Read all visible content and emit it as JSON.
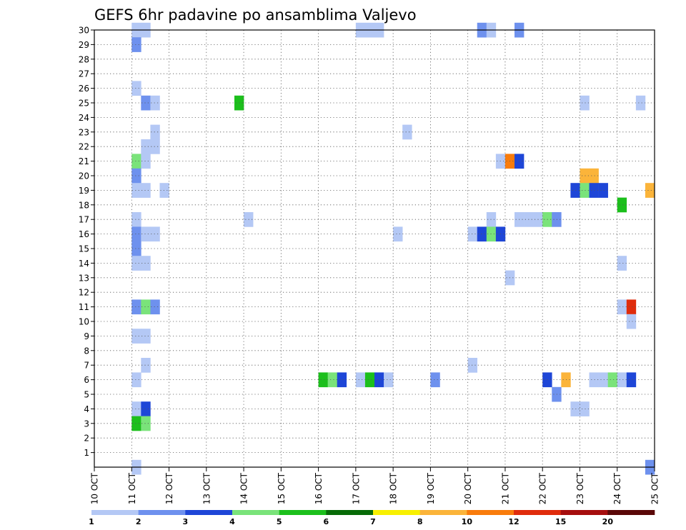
{
  "chart_data": {
    "type": "heatmap",
    "title": "GEFS 6hr padavine po ansamblima Valjevo",
    "xlabel": "",
    "ylabel": "",
    "x_range": [
      0,
      60
    ],
    "y_range": [
      0,
      30
    ],
    "x_ticks": [
      {
        "pos": 0,
        "label": "10 OCT"
      },
      {
        "pos": 4,
        "label": "11 OCT"
      },
      {
        "pos": 8,
        "label": "12 OCT"
      },
      {
        "pos": 12,
        "label": "13 OCT"
      },
      {
        "pos": 16,
        "label": "14 OCT"
      },
      {
        "pos": 20,
        "label": "15 OCT"
      },
      {
        "pos": 24,
        "label": "16 OCT"
      },
      {
        "pos": 28,
        "label": "17 OCT"
      },
      {
        "pos": 32,
        "label": "18 OCT"
      },
      {
        "pos": 36,
        "label": "19 OCT"
      },
      {
        "pos": 40,
        "label": "20 OCT"
      },
      {
        "pos": 44,
        "label": "21 OCT"
      },
      {
        "pos": 48,
        "label": "22 OCT"
      },
      {
        "pos": 52,
        "label": "23 OCT"
      },
      {
        "pos": 56,
        "label": "24 OCT"
      },
      {
        "pos": 60,
        "label": "25 OCT"
      }
    ],
    "y_ticks": [
      "1",
      "2",
      "3",
      "4",
      "5",
      "6",
      "7",
      "8",
      "9",
      "10",
      "11",
      "12",
      "13",
      "14",
      "15",
      "16",
      "17",
      "18",
      "19",
      "20",
      "21",
      "22",
      "23",
      "24",
      "25",
      "26",
      "27",
      "28",
      "29",
      "30"
    ],
    "grid": true,
    "colorbar": {
      "labels": [
        "1",
        "2",
        "3",
        "4",
        "5",
        "6",
        "7",
        "8",
        "10",
        "12",
        "15",
        "20"
      ],
      "colors": [
        "#b4c8f5",
        "#6e91ee",
        "#1e46d7",
        "#7ae37a",
        "#1cbf1c",
        "#076b07",
        "#f8f000",
        "#fbb43a",
        "#f97c0c",
        "#e02c0c",
        "#a60e0e",
        "#5a0808"
      ]
    },
    "cells": [
      {
        "t": 4,
        "m": 30,
        "c": 0
      },
      {
        "t": 5,
        "m": 30,
        "c": 0
      },
      {
        "t": 28,
        "m": 30,
        "c": 0
      },
      {
        "t": 29,
        "m": 30,
        "c": 0
      },
      {
        "t": 30,
        "m": 30,
        "c": 0
      },
      {
        "t": 41,
        "m": 30,
        "c": 1
      },
      {
        "t": 42,
        "m": 30,
        "c": 0
      },
      {
        "t": 45,
        "m": 30,
        "c": 1
      },
      {
        "t": 4,
        "m": 29,
        "c": 1
      },
      {
        "t": 4,
        "m": 26,
        "c": 0
      },
      {
        "t": 5,
        "m": 25,
        "c": 1
      },
      {
        "t": 6,
        "m": 25,
        "c": 0
      },
      {
        "t": 15,
        "m": 25,
        "c": 4
      },
      {
        "t": 52,
        "m": 25,
        "c": 0
      },
      {
        "t": 58,
        "m": 25,
        "c": 0
      },
      {
        "t": 6,
        "m": 23,
        "c": 0
      },
      {
        "t": 33,
        "m": 23,
        "c": 0
      },
      {
        "t": 5,
        "m": 22,
        "c": 0
      },
      {
        "t": 6,
        "m": 22,
        "c": 0
      },
      {
        "t": 4,
        "m": 21,
        "c": 3
      },
      {
        "t": 5,
        "m": 21,
        "c": 0
      },
      {
        "t": 43,
        "m": 21,
        "c": 0
      },
      {
        "t": 44,
        "m": 21,
        "c": 8
      },
      {
        "t": 45,
        "m": 21,
        "c": 2
      },
      {
        "t": 4,
        "m": 20,
        "c": 1
      },
      {
        "t": 52,
        "m": 20,
        "c": 7
      },
      {
        "t": 53,
        "m": 20,
        "c": 7
      },
      {
        "t": 4,
        "m": 19,
        "c": 0
      },
      {
        "t": 5,
        "m": 19,
        "c": 0
      },
      {
        "t": 7,
        "m": 19,
        "c": 0
      },
      {
        "t": 51,
        "m": 19,
        "c": 2
      },
      {
        "t": 52,
        "m": 19,
        "c": 3
      },
      {
        "t": 53,
        "m": 19,
        "c": 2
      },
      {
        "t": 54,
        "m": 19,
        "c": 2
      },
      {
        "t": 59,
        "m": 19,
        "c": 7
      },
      {
        "t": 56,
        "m": 18,
        "c": 4
      },
      {
        "t": 4,
        "m": 17,
        "c": 0
      },
      {
        "t": 16,
        "m": 17,
        "c": 0
      },
      {
        "t": 42,
        "m": 17,
        "c": 0
      },
      {
        "t": 45,
        "m": 17,
        "c": 0
      },
      {
        "t": 46,
        "m": 17,
        "c": 0
      },
      {
        "t": 47,
        "m": 17,
        "c": 0
      },
      {
        "t": 48,
        "m": 17,
        "c": 3
      },
      {
        "t": 49,
        "m": 17,
        "c": 1
      },
      {
        "t": 4,
        "m": 16,
        "c": 1
      },
      {
        "t": 5,
        "m": 16,
        "c": 0
      },
      {
        "t": 6,
        "m": 16,
        "c": 0
      },
      {
        "t": 32,
        "m": 16,
        "c": 0
      },
      {
        "t": 40,
        "m": 16,
        "c": 0
      },
      {
        "t": 41,
        "m": 16,
        "c": 2
      },
      {
        "t": 42,
        "m": 16,
        "c": 3
      },
      {
        "t": 43,
        "m": 16,
        "c": 2
      },
      {
        "t": 4,
        "m": 15,
        "c": 1
      },
      {
        "t": 4,
        "m": 14,
        "c": 0
      },
      {
        "t": 5,
        "m": 14,
        "c": 0
      },
      {
        "t": 56,
        "m": 14,
        "c": 0
      },
      {
        "t": 44,
        "m": 13,
        "c": 0
      },
      {
        "t": 4,
        "m": 11,
        "c": 1
      },
      {
        "t": 5,
        "m": 11,
        "c": 3
      },
      {
        "t": 6,
        "m": 11,
        "c": 1
      },
      {
        "t": 56,
        "m": 11,
        "c": 0
      },
      {
        "t": 57,
        "m": 11,
        "c": 9
      },
      {
        "t": 57,
        "m": 10,
        "c": 0
      },
      {
        "t": 4,
        "m": 9,
        "c": 0
      },
      {
        "t": 5,
        "m": 9,
        "c": 0
      },
      {
        "t": 5,
        "m": 7,
        "c": 0
      },
      {
        "t": 40,
        "m": 7,
        "c": 0
      },
      {
        "t": 4,
        "m": 6,
        "c": 0
      },
      {
        "t": 24,
        "m": 6,
        "c": 4
      },
      {
        "t": 25,
        "m": 6,
        "c": 3
      },
      {
        "t": 26,
        "m": 6,
        "c": 2
      },
      {
        "t": 28,
        "m": 6,
        "c": 0
      },
      {
        "t": 29,
        "m": 6,
        "c": 4
      },
      {
        "t": 30,
        "m": 6,
        "c": 2
      },
      {
        "t": 31,
        "m": 6,
        "c": 0
      },
      {
        "t": 36,
        "m": 6,
        "c": 1
      },
      {
        "t": 48,
        "m": 6,
        "c": 2
      },
      {
        "t": 50,
        "m": 6,
        "c": 7
      },
      {
        "t": 53,
        "m": 6,
        "c": 0
      },
      {
        "t": 54,
        "m": 6,
        "c": 0
      },
      {
        "t": 55,
        "m": 6,
        "c": 3
      },
      {
        "t": 56,
        "m": 6,
        "c": 0
      },
      {
        "t": 57,
        "m": 6,
        "c": 2
      },
      {
        "t": 49,
        "m": 5,
        "c": 1
      },
      {
        "t": 4,
        "m": 4,
        "c": 0
      },
      {
        "t": 5,
        "m": 4,
        "c": 2
      },
      {
        "t": 51,
        "m": 4,
        "c": 0
      },
      {
        "t": 52,
        "m": 4,
        "c": 0
      },
      {
        "t": 4,
        "m": 3,
        "c": 4
      },
      {
        "t": 5,
        "m": 3,
        "c": 3
      },
      {
        "t": 4,
        "m": 0,
        "c": 0
      },
      {
        "t": 59,
        "m": 0,
        "c": 1
      }
    ],
    "note_fix": "rows 15 and 16 at t=4 (15 row) represented in cells"
  }
}
